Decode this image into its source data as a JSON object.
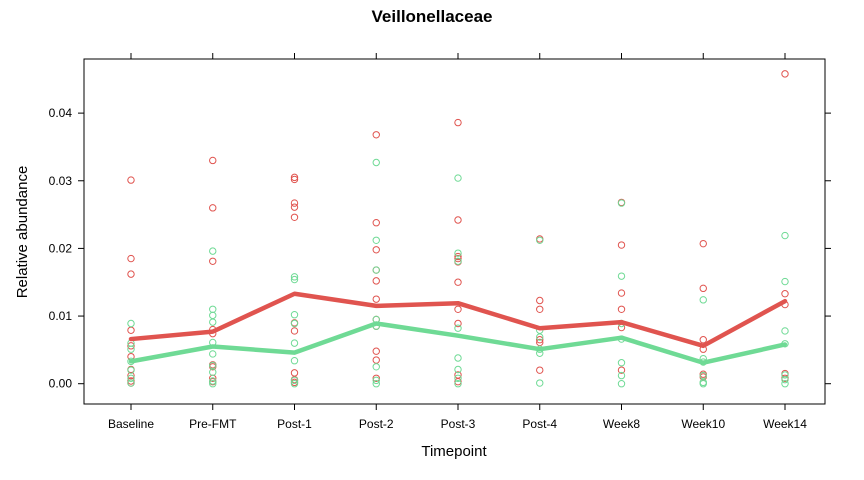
{
  "chart_data": {
    "type": "scatter",
    "title": "Veillonellaceae",
    "xlabel": "Timepoint",
    "ylabel": "Relative abundance",
    "categories": [
      "Baseline",
      "Pre-FMT",
      "Post-1",
      "Post-2",
      "Post-3",
      "Post-4",
      "Week8",
      "Week10",
      "Week14"
    ],
    "ylim": [
      -0.003,
      0.048
    ],
    "yticks": [
      0.0,
      0.01,
      0.02,
      0.03,
      0.04
    ],
    "ytick_labels": [
      "0.00",
      "0.01",
      "0.02",
      "0.03",
      "0.04"
    ],
    "grid": false,
    "series": [
      {
        "color": "#e0544f",
        "mean": [
          0.0066,
          0.0077,
          0.0133,
          0.0115,
          0.0119,
          0.0082,
          0.0091,
          0.0056,
          0.0122
        ],
        "points": [
          [
            0.0301,
            0.0185,
            0.0162,
            0.0079,
            0.0056,
            0.004,
            0.0021,
            0.0012,
            0.0004,
            0.0001
          ],
          [
            0.033,
            0.026,
            0.0181,
            0.008,
            0.0074,
            0.0028,
            0.0025,
            0.0008,
            0.0003
          ],
          [
            0.0305,
            0.0302,
            0.0267,
            0.0261,
            0.0246,
            0.009,
            0.0078,
            0.0016,
            0.0006,
            0.0002
          ],
          [
            0.0368,
            0.0238,
            0.0198,
            0.0168,
            0.0152,
            0.0125,
            0.0095,
            0.0085,
            0.0048,
            0.0035,
            0.0008
          ],
          [
            0.0386,
            0.0242,
            0.0188,
            0.0185,
            0.018,
            0.015,
            0.011,
            0.0089,
            0.0013,
            0.0003
          ],
          [
            0.0214,
            0.0123,
            0.011,
            0.0065,
            0.0061,
            0.002
          ],
          [
            0.0268,
            0.0205,
            0.0134,
            0.011,
            0.0083,
            0.002
          ],
          [
            0.0207,
            0.0141,
            0.0065,
            0.0051,
            0.0014,
            0.001
          ],
          [
            0.0458,
            0.0133,
            0.0117,
            0.0015,
            0.0008
          ]
        ]
      },
      {
        "color": "#6fda95",
        "mean": [
          0.0033,
          0.0055,
          0.0046,
          0.0089,
          0.0071,
          0.0051,
          0.0068,
          0.0031,
          0.0058
        ],
        "points": [
          [
            0.0089,
            0.006,
            0.0051,
            0.0033,
            0.002,
            0.0008,
            0.0001
          ],
          [
            0.0196,
            0.011,
            0.0101,
            0.0091,
            0.0061,
            0.0044,
            0.0027,
            0.0017,
            0.0004,
            0.0
          ],
          [
            0.0158,
            0.0154,
            0.0102,
            0.0089,
            0.006,
            0.0034,
            0.0005,
            0.0
          ],
          [
            0.0327,
            0.0212,
            0.0168,
            0.0095,
            0.0085,
            0.0025,
            0.0005,
            0.0
          ],
          [
            0.0304,
            0.0193,
            0.0181,
            0.0082,
            0.0038,
            0.0021,
            0.0008,
            0.0
          ],
          [
            0.0212,
            0.0079,
            0.0069,
            0.0051,
            0.0045,
            0.0001
          ],
          [
            0.0267,
            0.0159,
            0.0089,
            0.0066,
            0.0031,
            0.0012,
            0.0
          ],
          [
            0.0124,
            0.0037,
            0.0032,
            0.0012,
            0.0002,
            0.0
          ],
          [
            0.0219,
            0.0151,
            0.0078,
            0.0059,
            0.0013,
            0.0006,
            0.0
          ]
        ]
      }
    ]
  }
}
